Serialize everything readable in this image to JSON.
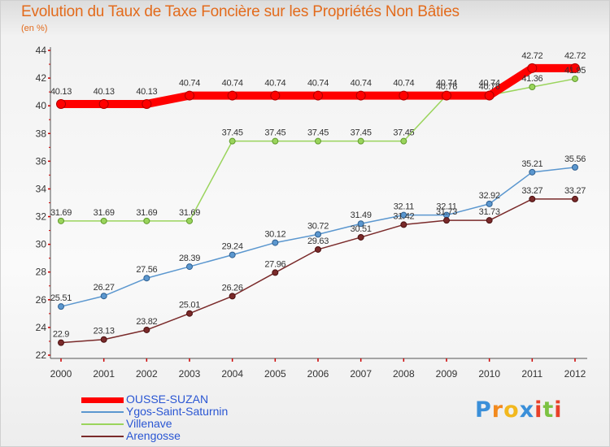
{
  "header": {
    "title": "Evolution du Taux de Taxe Foncière sur les Propriétés Non Bâties",
    "subtitle": "(en %)"
  },
  "chart_data": {
    "type": "line",
    "title": "Evolution du Taux de Taxe Foncière sur les Propriétés Non Bâties",
    "ylabel": "(en %)",
    "xlabel": "",
    "ylim": [
      22,
      44
    ],
    "yticks": [
      22,
      24,
      26,
      28,
      30,
      32,
      34,
      36,
      38,
      40,
      42,
      44
    ],
    "grid": false,
    "categories": [
      "2000",
      "2001",
      "2002",
      "2003",
      "2004",
      "2005",
      "2006",
      "2007",
      "2008",
      "2009",
      "2010",
      "2011",
      "2012"
    ],
    "series": [
      {
        "name": "OUSSE-SUZAN",
        "color": "#ff0000",
        "values": [
          40.13,
          40.13,
          40.13,
          40.74,
          40.74,
          40.74,
          40.74,
          40.74,
          40.74,
          40.74,
          40.74,
          42.72,
          42.72
        ],
        "labels": [
          "40.13",
          "40.13",
          "40.13",
          "40.74",
          "40.74",
          "40.74",
          "40.74",
          "40.74",
          "40.74",
          "40.74",
          "40.74",
          "42.72",
          "42.72"
        ]
      },
      {
        "name": "Ygos-Saint-Saturnin",
        "color": "#5b97cf",
        "values": [
          25.51,
          26.27,
          27.56,
          28.39,
          29.24,
          30.12,
          30.72,
          31.49,
          32.11,
          32.11,
          32.92,
          35.21,
          35.56
        ],
        "labels": [
          "25.51",
          "26.27",
          "27.56",
          "28.39",
          "29.24",
          "30.12",
          "30.72",
          "31.49",
          "32.11",
          "32.11",
          "32.92",
          "35.21",
          "35.56"
        ]
      },
      {
        "name": "Villenave",
        "color": "#9ad45c",
        "values": [
          31.69,
          31.69,
          31.69,
          31.69,
          37.45,
          37.45,
          37.45,
          37.45,
          37.45,
          40.76,
          40.76,
          41.36,
          41.95
        ],
        "labels": [
          "31.69",
          "31.69",
          "31.69",
          "31.69",
          "37.45",
          "37.45",
          "37.45",
          "37.45",
          "37.45",
          "40.76",
          "40.76",
          "41.36",
          "41.95"
        ]
      },
      {
        "name": "Arengosse",
        "color": "#7a2a2a",
        "values": [
          22.9,
          23.13,
          23.82,
          25.01,
          26.26,
          27.96,
          29.63,
          30.51,
          31.42,
          31.73,
          31.73,
          33.27,
          33.27
        ],
        "labels": [
          "22.9",
          "23.13",
          "23.82",
          "25.01",
          "26.26",
          "27.96",
          "29.63",
          "30.51",
          "31.42",
          "31.73",
          "31.73",
          "33.27",
          "33.27"
        ]
      }
    ],
    "legend_position": "bottom-left"
  },
  "legend": {
    "items": [
      {
        "label": "OUSSE-SUZAN",
        "color": "#ff0000"
      },
      {
        "label": "Ygos-Saint-Saturnin",
        "color": "#5b97cf"
      },
      {
        "label": "Villenave",
        "color": "#9ad45c"
      },
      {
        "label": "Arengosse",
        "color": "#7a2a2a"
      }
    ]
  },
  "logo": {
    "text": "Proxiti",
    "letters": [
      {
        "ch": "P",
        "color": "#3a8fd9"
      },
      {
        "ch": "r",
        "color": "#f28a1e"
      },
      {
        "ch": "o",
        "color": "#f2b81e"
      },
      {
        "ch": "x",
        "color": "#3a8fd9"
      },
      {
        "ch": "i",
        "color": "#e8412a"
      },
      {
        "ch": "t",
        "color": "#7cc242"
      },
      {
        "ch": "i",
        "color": "#e8412a"
      }
    ]
  }
}
